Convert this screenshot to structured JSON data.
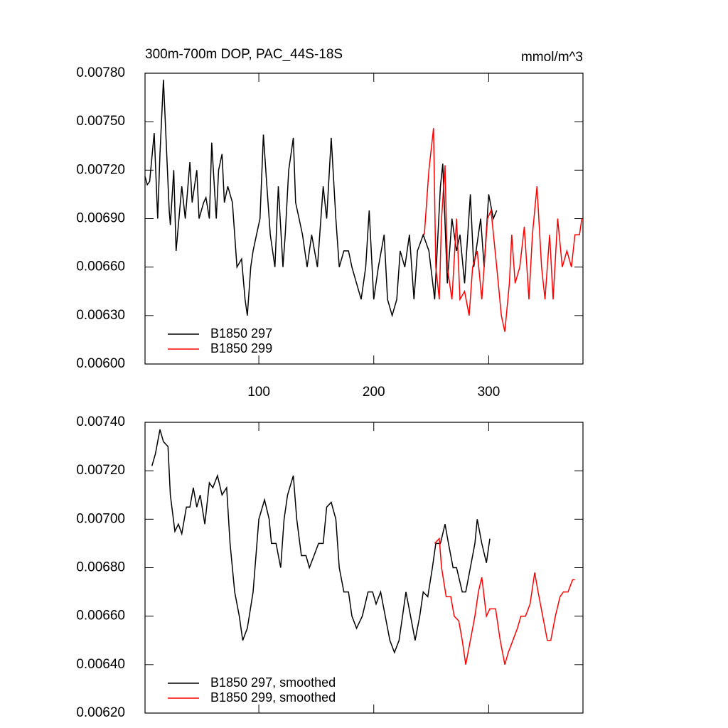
{
  "chart_data": [
    {
      "type": "line",
      "title": "300m-700m DOP, PAC_44S-18S",
      "unit_label": "mmol/m^3",
      "xlim": [
        1,
        382
      ],
      "xticks": [
        100,
        200,
        300
      ],
      "ylim": [
        0.006,
        0.0078
      ],
      "yticks": [
        {
          "value": 0.006,
          "label": "0.00600"
        },
        {
          "value": 0.0063,
          "label": "0.00630"
        },
        {
          "value": 0.0066,
          "label": "0.00660"
        },
        {
          "value": 0.0069,
          "label": "0.00690"
        },
        {
          "value": 0.0072,
          "label": "0.00720"
        },
        {
          "value": 0.0075,
          "label": "0.00750"
        },
        {
          "value": 0.0078,
          "label": "0.00780"
        }
      ],
      "legend_position": "lower left",
      "series": [
        {
          "name": "B1850 297",
          "color": "#000000",
          "x": [
            1,
            3,
            5,
            9,
            12,
            14,
            17,
            22,
            23,
            26,
            28,
            33,
            36,
            40,
            42,
            46,
            48,
            52,
            54,
            57,
            59,
            63,
            65,
            68,
            70,
            73,
            77,
            79,
            81,
            85,
            88,
            90,
            93,
            95,
            98,
            101,
            104,
            107,
            110,
            114,
            117,
            121,
            123,
            126,
            130,
            132,
            135,
            138,
            142,
            146,
            151,
            156,
            159,
            163,
            167,
            170,
            174,
            178,
            181,
            185,
            189,
            193,
            196,
            200,
            204,
            209,
            212,
            216,
            220,
            223,
            227,
            231,
            235,
            238,
            243,
            248,
            253,
            258,
            260,
            264,
            268,
            272,
            275,
            279,
            284,
            287,
            293,
            296,
            300,
            304,
            307
          ],
          "values": [
            0.00716,
            0.00711,
            0.00713,
            0.00743,
            0.0069,
            0.0073,
            0.00776,
            0.00695,
            0.00686,
            0.0072,
            0.0067,
            0.0071,
            0.0069,
            0.00725,
            0.007,
            0.0072,
            0.0069,
            0.007,
            0.00703,
            0.0069,
            0.00737,
            0.0069,
            0.0072,
            0.0073,
            0.007,
            0.0071,
            0.007,
            0.0068,
            0.0066,
            0.00665,
            0.0064,
            0.0063,
            0.0066,
            0.0067,
            0.0068,
            0.0069,
            0.00742,
            0.0071,
            0.0068,
            0.0066,
            0.0071,
            0.0066,
            0.0068,
            0.0072,
            0.0074,
            0.007,
            0.0069,
            0.0068,
            0.0066,
            0.0068,
            0.0066,
            0.0071,
            0.0069,
            0.0074,
            0.0069,
            0.0066,
            0.0067,
            0.0067,
            0.0066,
            0.0065,
            0.0064,
            0.0066,
            0.00695,
            0.0064,
            0.0066,
            0.0068,
            0.0064,
            0.0063,
            0.0064,
            0.0067,
            0.0066,
            0.0068,
            0.0064,
            0.0067,
            0.0068,
            0.0067,
            0.0064,
            0.0071,
            0.00724,
            0.0065,
            0.0069,
            0.0067,
            0.0068,
            0.0065,
            0.00705,
            0.0066,
            0.0069,
            0.0066,
            0.00705,
            0.0069,
            0.00695
          ]
        },
        {
          "name": "B1850 299",
          "color": "#ff0000",
          "x": [
            244,
            248,
            252,
            254,
            257,
            259,
            262,
            264,
            268,
            272,
            275,
            279,
            283,
            286,
            290,
            294,
            299,
            302,
            307,
            311,
            314,
            318,
            320,
            323,
            327,
            331,
            335,
            338,
            342,
            346,
            349,
            353,
            356,
            360,
            364,
            368,
            372,
            375,
            379,
            381
          ],
          "values": [
            0.0068,
            0.0072,
            0.00746,
            0.0066,
            0.0064,
            0.0069,
            0.00723,
            0.0066,
            0.0064,
            0.0069,
            0.0064,
            0.00645,
            0.0063,
            0.0066,
            0.0067,
            0.0064,
            0.0069,
            0.00695,
            0.0066,
            0.0063,
            0.0062,
            0.0065,
            0.0068,
            0.0065,
            0.0066,
            0.00685,
            0.0064,
            0.0068,
            0.0071,
            0.0066,
            0.0064,
            0.0068,
            0.0064,
            0.0069,
            0.0066,
            0.0067,
            0.0066,
            0.0068,
            0.0068,
            0.0069
          ]
        }
      ]
    },
    {
      "type": "line",
      "xlim": [
        1,
        382
      ],
      "ylim": [
        0.0062,
        0.0074
      ],
      "yticks": [
        {
          "value": 0.0062,
          "label": "0.00620"
        },
        {
          "value": 0.0064,
          "label": "0.00640"
        },
        {
          "value": 0.0066,
          "label": "0.00660"
        },
        {
          "value": 0.0068,
          "label": "0.00680"
        },
        {
          "value": 0.007,
          "label": "0.00700"
        },
        {
          "value": 0.0072,
          "label": "0.00720"
        },
        {
          "value": 0.0074,
          "label": "0.00740"
        }
      ],
      "legend_position": "lower left",
      "series": [
        {
          "name": "B1850 297, smoothed",
          "color": "#000000",
          "x": [
            7,
            10,
            14,
            17,
            21,
            23,
            27,
            30,
            33,
            37,
            40,
            43,
            46,
            49,
            53,
            57,
            60,
            64,
            68,
            72,
            75,
            79,
            83,
            86,
            90,
            95,
            100,
            105,
            109,
            111,
            115,
            119,
            122,
            125,
            130,
            133,
            137,
            141,
            144,
            148,
            152,
            156,
            159,
            163,
            167,
            170,
            174,
            178,
            181,
            185,
            190,
            195,
            199,
            202,
            206,
            210,
            214,
            218,
            222,
            225,
            228,
            232,
            236,
            240,
            243,
            247,
            251,
            254,
            258,
            262,
            265,
            269,
            272,
            277,
            280,
            284,
            288,
            290,
            294,
            298,
            301
          ],
          "values": [
            0.00722,
            0.00727,
            0.00737,
            0.00732,
            0.0073,
            0.0071,
            0.00695,
            0.00698,
            0.00694,
            0.00705,
            0.00705,
            0.00713,
            0.00705,
            0.0071,
            0.00698,
            0.00715,
            0.00713,
            0.00718,
            0.0071,
            0.00713,
            0.0069,
            0.0067,
            0.0066,
            0.0065,
            0.00655,
            0.0067,
            0.007,
            0.00708,
            0.007,
            0.0069,
            0.0069,
            0.0068,
            0.007,
            0.0071,
            0.00718,
            0.007,
            0.00685,
            0.00685,
            0.0068,
            0.00685,
            0.0069,
            0.0069,
            0.00705,
            0.00707,
            0.007,
            0.0068,
            0.0067,
            0.0067,
            0.0066,
            0.00655,
            0.0066,
            0.0067,
            0.0067,
            0.00665,
            0.0067,
            0.0066,
            0.0065,
            0.00645,
            0.0065,
            0.0066,
            0.0067,
            0.0066,
            0.0065,
            0.0066,
            0.0067,
            0.00668,
            0.0068,
            0.0069,
            0.0069,
            0.00698,
            0.0069,
            0.0068,
            0.0068,
            0.0067,
            0.0067,
            0.0068,
            0.0069,
            0.007,
            0.0069,
            0.00682,
            0.00692
          ]
        },
        {
          "name": "B1850 299, smoothed",
          "color": "#ff0000",
          "x": [
            253,
            257,
            259,
            263,
            267,
            270,
            274,
            277,
            280,
            284,
            288,
            291,
            294,
            298,
            301,
            306,
            310,
            314,
            317,
            321,
            325,
            328,
            332,
            336,
            340,
            343,
            347,
            351,
            354,
            358,
            362,
            365,
            369,
            373,
            375
          ],
          "values": [
            0.0069,
            0.00692,
            0.0068,
            0.00668,
            0.00668,
            0.0066,
            0.00658,
            0.0065,
            0.0064,
            0.0065,
            0.0066,
            0.0067,
            0.00676,
            0.0066,
            0.00663,
            0.00663,
            0.0065,
            0.0064,
            0.00645,
            0.0065,
            0.00655,
            0.0066,
            0.0066,
            0.00665,
            0.00678,
            0.0067,
            0.0066,
            0.0065,
            0.0065,
            0.0066,
            0.00668,
            0.0067,
            0.0067,
            0.00675,
            0.00675
          ]
        }
      ]
    }
  ]
}
